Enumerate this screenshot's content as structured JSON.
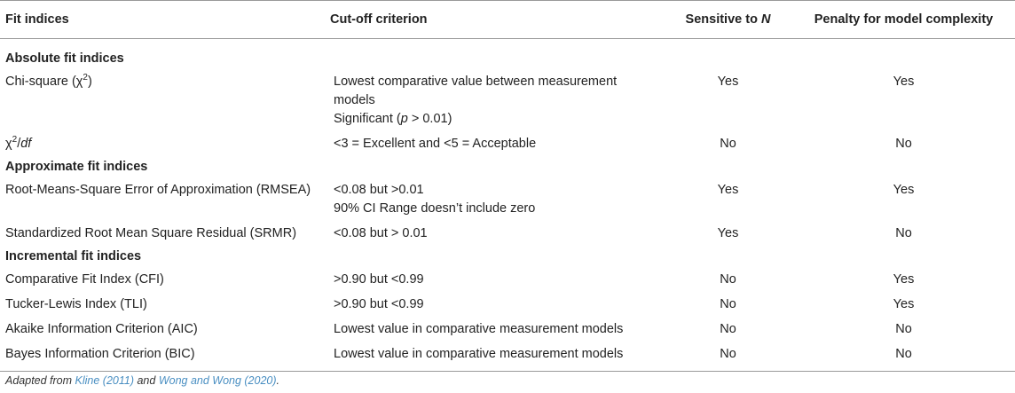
{
  "headers": {
    "fit_indices": "Fit indices",
    "cutoff": "Cut-off criterion",
    "sensitive_prefix": "Sensitive to ",
    "sensitive_var": "N",
    "penalty": "Penalty for model complexity"
  },
  "sections": {
    "absolute": "Absolute fit indices",
    "approximate": "Approximate fit indices",
    "incremental": "Incremental fit indices"
  },
  "rows": {
    "chisq": {
      "name_prefix": "Chi-square (χ",
      "name_sup": "2",
      "name_suffix": ")",
      "criterion_line1": "Lowest comparative value between measurement models",
      "criterion_line2_prefix": "Significant (",
      "criterion_line2_var": "p",
      "criterion_line2_suffix": " > 0.01)",
      "sensitive": "Yes",
      "penalty": "Yes"
    },
    "chisq_df": {
      "name_prefix": "χ",
      "name_sup": "2",
      "name_slash": "/",
      "name_var": "df",
      "criterion": "<3 = Excellent and <5 = Acceptable",
      "sensitive": "No",
      "penalty": "No"
    },
    "rmsea": {
      "name": "Root-Means-Square Error of Approximation (RMSEA)",
      "criterion_line1": "<0.08 but >0.01",
      "criterion_line2": "90% CI Range doesn’t include zero",
      "sensitive": "Yes",
      "penalty": "Yes"
    },
    "srmr": {
      "name": "Standardized Root Mean Square Residual (SRMR)",
      "criterion": "<0.08 but > 0.01",
      "sensitive": "Yes",
      "penalty": "No"
    },
    "cfi": {
      "name": "Comparative Fit Index (CFI)",
      "criterion": ">0.90 but <0.99",
      "sensitive": "No",
      "penalty": "Yes"
    },
    "tli": {
      "name": "Tucker-Lewis Index (TLI)",
      "criterion": ">0.90 but <0.99",
      "sensitive": "No",
      "penalty": "Yes"
    },
    "aic": {
      "name": "Akaike Information Criterion (AIC)",
      "criterion": "Lowest value in comparative measurement models",
      "sensitive": "No",
      "penalty": "No"
    },
    "bic": {
      "name": "Bayes Information Criterion (BIC)",
      "criterion": "Lowest value in comparative measurement models",
      "sensitive": "No",
      "penalty": "No"
    }
  },
  "footnote": {
    "prefix": "Adapted from ",
    "ref1": "Kline (2011)",
    "middle": " and ",
    "ref2": "Wong and Wong (2020)",
    "suffix": "."
  },
  "colors": {
    "text": "#222222",
    "rule": "#9a9a9a",
    "link": "#4a8fc2"
  }
}
